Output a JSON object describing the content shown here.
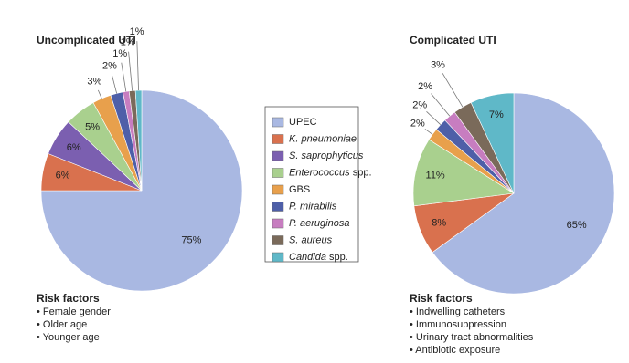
{
  "chart_data": {
    "type": "pie",
    "categories": [
      "UPEC",
      "K. pneumoniae",
      "S. saprophyticus",
      "Enterococcus spp.",
      "GBS",
      "P. mirabilis",
      "P. aeruginosa",
      "S. aureus",
      "Candida spp."
    ],
    "italic": [
      "none",
      "all",
      "all",
      "first",
      "none",
      "all",
      "all",
      "all",
      "first"
    ],
    "colors": [
      "#a9b8e2",
      "#d9714e",
      "#7b5fb0",
      "#a9d08e",
      "#e8a04c",
      "#4e5fa8",
      "#c77dc0",
      "#7a6a5a",
      "#5fb8c8"
    ],
    "pies": [
      {
        "title": "Uncomplicated UTI",
        "values": [
          75,
          6,
          6,
          5,
          3,
          2,
          1,
          1,
          1
        ],
        "value_labels": [
          "75%",
          "6%",
          "6%",
          "5%",
          "3%",
          "2%",
          "1%",
          "1%",
          "1%"
        ],
        "notes_title": "Risk factors",
        "notes": [
          "• Female gender",
          "• Older age",
          "• Younger age"
        ]
      },
      {
        "title": "Complicated UTI",
        "values": [
          65,
          8,
          null,
          11,
          2,
          2,
          2,
          3,
          7
        ],
        "value_labels": [
          "65%",
          "8%",
          null,
          "11%",
          "2%",
          "2%",
          "2%",
          "3%",
          "7%"
        ],
        "notes_title": "Risk factors",
        "notes": [
          "• Indwelling catheters",
          "• Immunosuppression",
          "• Urinary tract abnormalities",
          "• Antibiotic exposure"
        ]
      }
    ]
  }
}
